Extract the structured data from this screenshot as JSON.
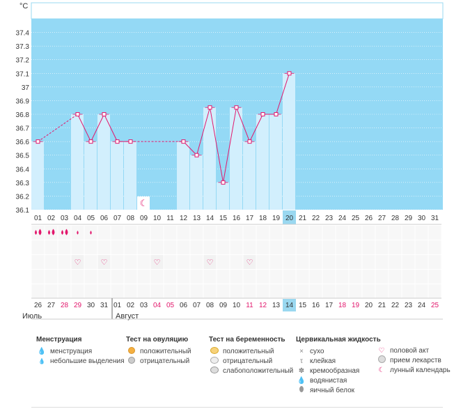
{
  "chart_data": {
    "type": "line",
    "y_unit": "°C",
    "ylim": [
      36.1,
      37.5
    ],
    "y_ticks": [
      "36.1",
      "36.2",
      "36.3",
      "36.4",
      "36.5",
      "36.6",
      "36.7",
      "36.8",
      "36.9",
      "37",
      "37.1",
      "37.2",
      "37.3",
      "37.4"
    ],
    "x_cycle_days": [
      "01",
      "02",
      "03",
      "04",
      "05",
      "06",
      "07",
      "08",
      "09",
      "10",
      "11",
      "12",
      "13",
      "14",
      "15",
      "16",
      "17",
      "18",
      "19",
      "20",
      "21",
      "22",
      "23",
      "24",
      "25",
      "26",
      "27",
      "28",
      "29",
      "30",
      "31"
    ],
    "x_dates": [
      "26",
      "27",
      "28",
      "29",
      "30",
      "31",
      "01",
      "02",
      "03",
      "04",
      "05",
      "06",
      "07",
      "08",
      "09",
      "10",
      "11",
      "12",
      "13",
      "14",
      "15",
      "16",
      "17",
      "18",
      "19",
      "20",
      "21",
      "22",
      "23",
      "24",
      "25"
    ],
    "weekend_dates": [
      "28",
      "29",
      "04",
      "05",
      "11",
      "12",
      "18",
      "19",
      "25"
    ],
    "month_labels": [
      "Июль",
      "Август"
    ],
    "highlight_day": "20",
    "highlight_date": "14",
    "temperatures": [
      36.6,
      null,
      null,
      36.8,
      36.6,
      36.8,
      36.6,
      36.6,
      null,
      null,
      null,
      36.6,
      36.5,
      36.85,
      36.3,
      36.85,
      36.6,
      36.8,
      36.8,
      37.1,
      null,
      null,
      null,
      null,
      null,
      null,
      null,
      null,
      null,
      null,
      null
    ],
    "menstruation": [
      2,
      2,
      2,
      1,
      1,
      0,
      0,
      0,
      0,
      0,
      0,
      0,
      0,
      0,
      0,
      0,
      0,
      0,
      0,
      0,
      0,
      0,
      0,
      0,
      0,
      0,
      0,
      0,
      0,
      0,
      0
    ],
    "intercourse_days": [
      "04",
      "06",
      "10",
      "14",
      "17"
    ],
    "moon_day": "09",
    "colors": {
      "chart_bg": "#94d9f5",
      "bar": "#d2effd",
      "line": "#e2176c",
      "highlight": "#9ad8f0",
      "weekend": "#e2176c"
    }
  },
  "legend": {
    "menstruation": {
      "title": "Менструация",
      "items": [
        "менструация",
        "небольшие выделения"
      ]
    },
    "ovulation_test": {
      "title": "Тест на овуляцию",
      "items": [
        "положительный",
        "отрицательный"
      ]
    },
    "pregnancy_test": {
      "title": "Тест на беременность",
      "items": [
        "положительный",
        "отрицательный",
        "слабоположительный"
      ]
    },
    "cervical_fluid": {
      "title": "Цервикальная жидкость",
      "items": [
        "сухо",
        "клейкая",
        "кремообразная",
        "водянистая",
        "яичный белок"
      ]
    },
    "other": {
      "items": [
        "половой акт",
        "прием лекарств",
        "лунный календарь"
      ]
    }
  }
}
